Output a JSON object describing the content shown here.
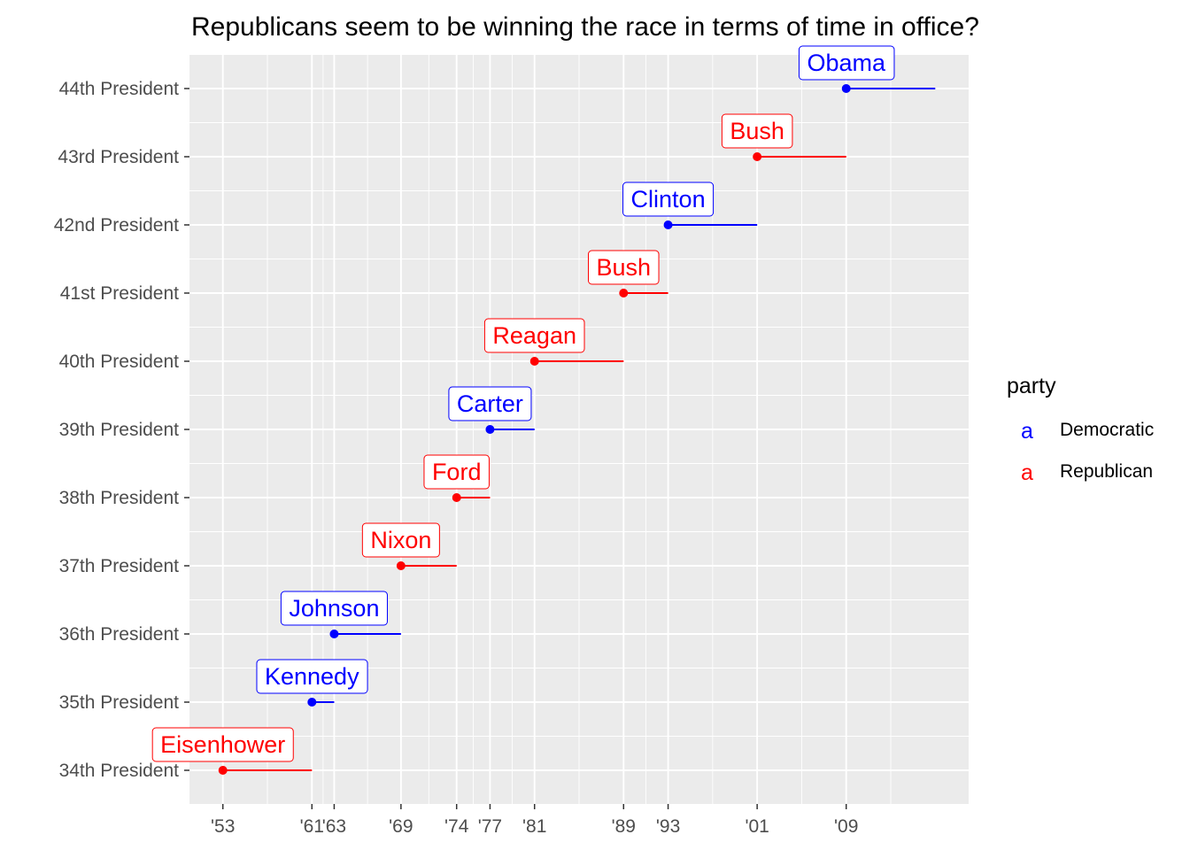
{
  "chart_data": {
    "type": "timeline",
    "title": "Republicans seem to be winning the race in terms of time in office?",
    "xlabel": "",
    "ylabel": "",
    "xlim": [
      1950,
      2020
    ],
    "x_ticks": [
      {
        "value": 1953,
        "label": "'53"
      },
      {
        "value": 1961,
        "label": "'61"
      },
      {
        "value": 1963,
        "label": "'63"
      },
      {
        "value": 1969,
        "label": "'69"
      },
      {
        "value": 1974,
        "label": "'74"
      },
      {
        "value": 1977,
        "label": "'77"
      },
      {
        "value": 1981,
        "label": "'81"
      },
      {
        "value": 1989,
        "label": "'89"
      },
      {
        "value": 1993,
        "label": "'93"
      },
      {
        "value": 2001,
        "label": "'01"
      },
      {
        "value": 2009,
        "label": "'09"
      }
    ],
    "categories": [
      "34th President",
      "35th President",
      "36th President",
      "37th President",
      "38th President",
      "39th President",
      "40th President",
      "41st President",
      "42nd President",
      "43rd President",
      "44th President"
    ],
    "presidents": [
      {
        "category": "34th President",
        "name": "Eisenhower",
        "party": "Republican",
        "start": 1953,
        "end": 1961
      },
      {
        "category": "35th President",
        "name": "Kennedy",
        "party": "Democratic",
        "start": 1961,
        "end": 1963
      },
      {
        "category": "36th President",
        "name": "Johnson",
        "party": "Democratic",
        "start": 1963,
        "end": 1969
      },
      {
        "category": "37th President",
        "name": "Nixon",
        "party": "Republican",
        "start": 1969,
        "end": 1974
      },
      {
        "category": "38th President",
        "name": "Ford",
        "party": "Republican",
        "start": 1974,
        "end": 1977
      },
      {
        "category": "39th President",
        "name": "Carter",
        "party": "Democratic",
        "start": 1977,
        "end": 1981
      },
      {
        "category": "40th President",
        "name": "Reagan",
        "party": "Republican",
        "start": 1981,
        "end": 1989
      },
      {
        "category": "41st President",
        "name": "Bush",
        "party": "Republican",
        "start": 1989,
        "end": 1993
      },
      {
        "category": "42nd President",
        "name": "Clinton",
        "party": "Democratic",
        "start": 1993,
        "end": 2001
      },
      {
        "category": "43rd President",
        "name": "Bush",
        "party": "Republican",
        "start": 2001,
        "end": 2009
      },
      {
        "category": "44th President",
        "name": "Obama",
        "party": "Democratic",
        "start": 2009,
        "end": 2017
      }
    ],
    "legend": {
      "title": "party",
      "placement": "right",
      "key_glyph": "a",
      "entries": [
        {
          "name": "Democratic",
          "color": "#0000FF"
        },
        {
          "name": "Republican",
          "color": "#FF0000"
        }
      ]
    },
    "grid": true,
    "panel_background": "#EBEBEB",
    "grid_color": "#FFFFFF"
  }
}
